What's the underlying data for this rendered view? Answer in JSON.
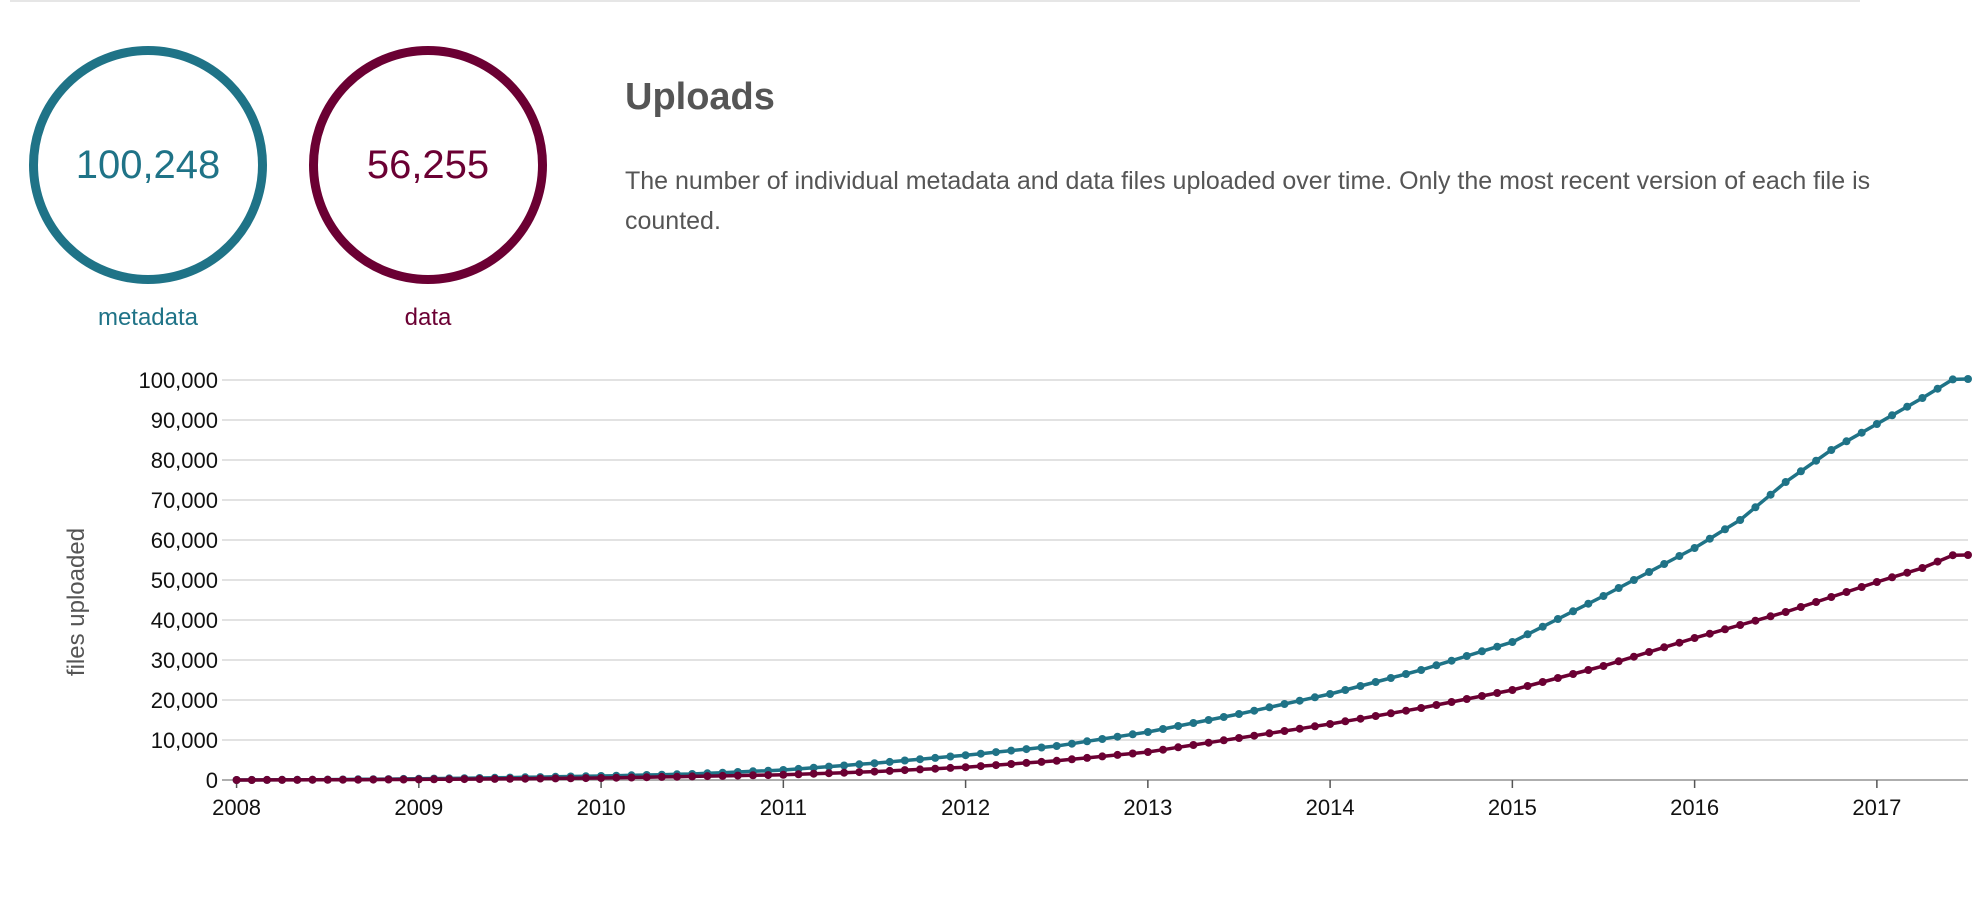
{
  "summary": {
    "metadata": {
      "value": "100,248",
      "label": "metadata",
      "color": "#1f7387"
    },
    "data": {
      "value": "56,255",
      "label": "data",
      "color": "#6b0033"
    }
  },
  "header": {
    "title": "Uploads",
    "description": "The number of individual metadata and data files uploaded over time. Only the most recent version of each file is counted."
  },
  "chart_data": {
    "type": "line",
    "title": "",
    "xlabel": "",
    "ylabel": "files uploaded",
    "xlim": [
      2007.92,
      2017.5
    ],
    "ylim": [
      0,
      100000
    ],
    "x_ticks": [
      "2008",
      "2009",
      "2010",
      "2011",
      "2012",
      "2013",
      "2014",
      "2015",
      "2016",
      "2017"
    ],
    "y_ticks": [
      "0",
      "10,000",
      "20,000",
      "30,000",
      "40,000",
      "50,000",
      "60,000",
      "70,000",
      "80,000",
      "90,000",
      "100,000"
    ],
    "grid": true,
    "series": [
      {
        "name": "metadata",
        "color": "#1f7387",
        "points": [
          [
            2008.0,
            0
          ],
          [
            2008.5,
            100
          ],
          [
            2009.0,
            300
          ],
          [
            2009.5,
            600
          ],
          [
            2010.0,
            1000
          ],
          [
            2010.5,
            1500
          ],
          [
            2011.0,
            2500
          ],
          [
            2011.5,
            4200
          ],
          [
            2012.0,
            6200
          ],
          [
            2012.5,
            8500
          ],
          [
            2013.0,
            12000
          ],
          [
            2013.5,
            16500
          ],
          [
            2014.0,
            21500
          ],
          [
            2014.5,
            27500
          ],
          [
            2015.0,
            34500
          ],
          [
            2015.5,
            46000
          ],
          [
            2016.0,
            58000
          ],
          [
            2016.25,
            65000
          ],
          [
            2016.5,
            74500
          ],
          [
            2016.75,
            82500
          ],
          [
            2017.0,
            89000
          ],
          [
            2017.25,
            95500
          ],
          [
            2017.42,
            100248
          ],
          [
            2017.5,
            100248
          ]
        ]
      },
      {
        "name": "data",
        "color": "#6b0033",
        "points": [
          [
            2008.0,
            0
          ],
          [
            2008.5,
            50
          ],
          [
            2009.0,
            150
          ],
          [
            2009.5,
            300
          ],
          [
            2010.0,
            500
          ],
          [
            2010.5,
            900
          ],
          [
            2011.0,
            1300
          ],
          [
            2011.5,
            2100
          ],
          [
            2012.0,
            3200
          ],
          [
            2012.5,
            4800
          ],
          [
            2013.0,
            7000
          ],
          [
            2013.5,
            10500
          ],
          [
            2014.0,
            14000
          ],
          [
            2014.5,
            18000
          ],
          [
            2015.0,
            22500
          ],
          [
            2015.5,
            28500
          ],
          [
            2016.0,
            35500
          ],
          [
            2016.5,
            42000
          ],
          [
            2017.0,
            49500
          ],
          [
            2017.25,
            53000
          ],
          [
            2017.42,
            56255
          ],
          [
            2017.5,
            56255
          ]
        ]
      }
    ]
  }
}
